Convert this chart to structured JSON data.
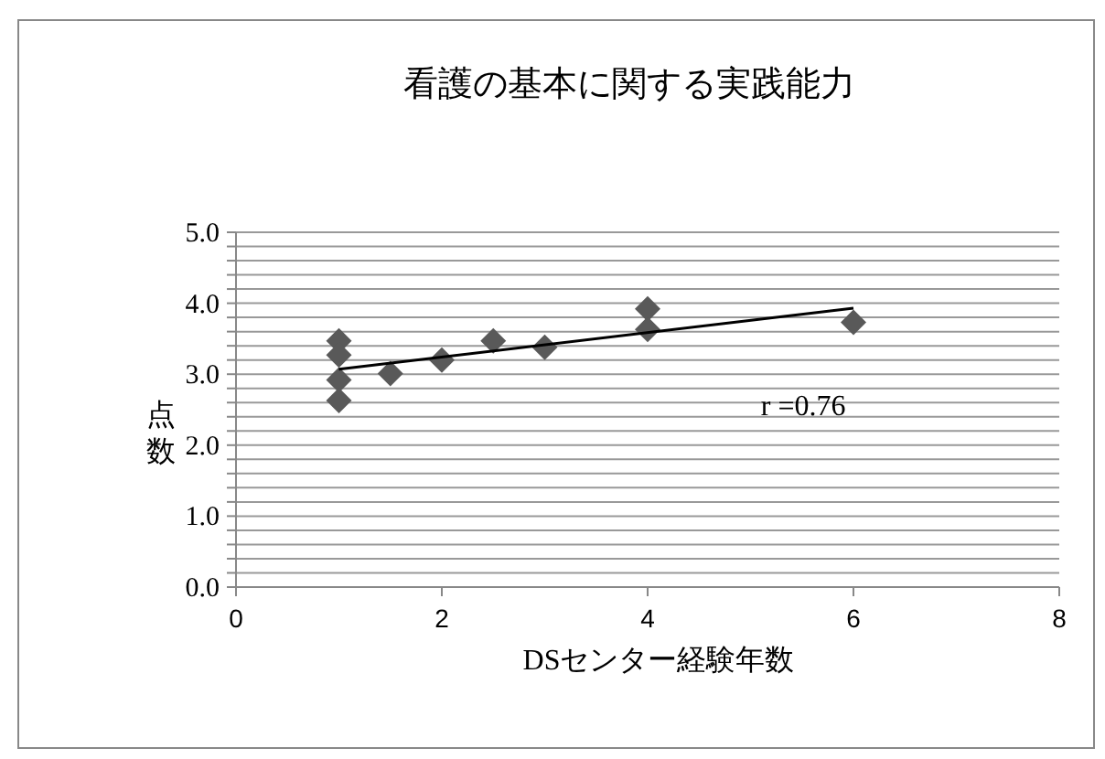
{
  "chart_data": {
    "type": "scatter",
    "title": "看護の基本に関する実践能力",
    "xlabel": "DSセンター経験年数",
    "ylabel": "点数",
    "xlim": [
      0,
      8
    ],
    "xticks": [
      0,
      2,
      4,
      6,
      8
    ],
    "ylim": [
      0,
      5
    ],
    "yticks": [
      {
        "value": 0,
        "label": "0.0"
      },
      {
        "value": 0.2,
        "label": null
      },
      {
        "value": 0.4,
        "label": null
      },
      {
        "value": 0.6,
        "label": null
      },
      {
        "value": 0.8,
        "label": null
      },
      {
        "value": 1,
        "label": "1.0"
      },
      {
        "value": 1.2,
        "label": null
      },
      {
        "value": 1.4,
        "label": null
      },
      {
        "value": 1.6,
        "label": null
      },
      {
        "value": 1.8,
        "label": null
      },
      {
        "value": 2,
        "label": "2.0"
      },
      {
        "value": 2.2,
        "label": null
      },
      {
        "value": 2.4,
        "label": null
      },
      {
        "value": 2.6,
        "label": null
      },
      {
        "value": 2.8,
        "label": null
      },
      {
        "value": 3,
        "label": "3.0"
      },
      {
        "value": 3.2,
        "label": null
      },
      {
        "value": 3.4,
        "label": null
      },
      {
        "value": 3.6,
        "label": null
      },
      {
        "value": 3.8,
        "label": null
      },
      {
        "value": 4,
        "label": "4.0"
      },
      {
        "value": 4.2,
        "label": null
      },
      {
        "value": 4.4,
        "label": null
      },
      {
        "value": 4.6,
        "label": null
      },
      {
        "value": 4.8,
        "label": null
      },
      {
        "value": 5,
        "label": "5.0"
      }
    ],
    "grid": "y",
    "series": [
      {
        "color": "#595959",
        "marker": "diamond",
        "x": [
          1,
          1,
          1,
          1,
          1.5,
          2,
          2.5,
          3,
          4,
          4,
          6
        ],
        "values": [
          3.47,
          3.27,
          2.92,
          2.63,
          3.01,
          3.2,
          3.47,
          3.38,
          3.92,
          3.63,
          3.73
        ]
      },
      {
        "type": "line",
        "color": "#000000",
        "marker": "none",
        "line_style": "solid",
        "x": [
          1,
          6
        ],
        "values": [
          3.07,
          3.93
        ]
      }
    ],
    "annotations": [
      "r =0.76"
    ]
  }
}
